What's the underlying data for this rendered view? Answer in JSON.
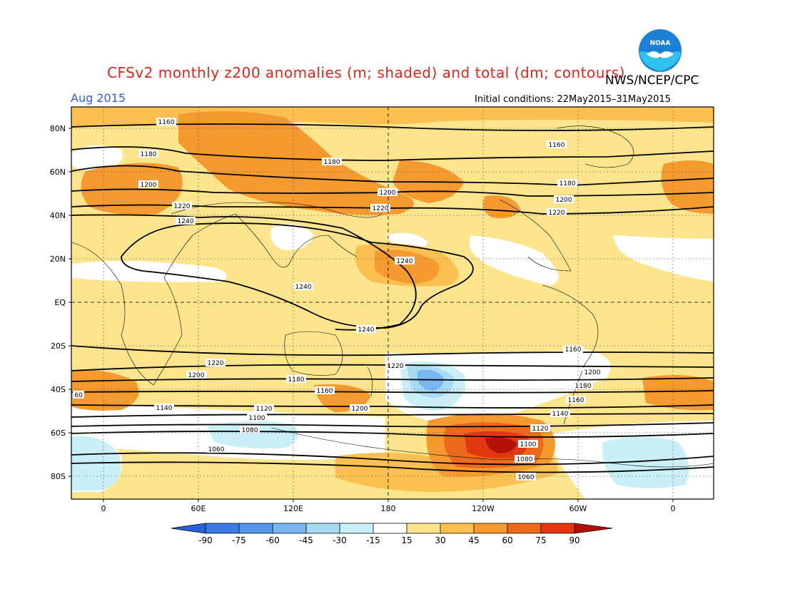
{
  "header": {
    "title": "CFSv2 monthly z200 anomalies (m; shaded) and total (dm; contours)",
    "agency": "NWS/NCEP/CPC",
    "month": "Aug 2015",
    "initial_conditions": "Initial conditions: 22May2015–31May2015",
    "logo_text": "NOAA"
  },
  "map": {
    "lat_labels": [
      "80N",
      "60N",
      "40N",
      "20N",
      "EQ",
      "20S",
      "40S",
      "60S",
      "80S"
    ],
    "lon_labels": [
      "0",
      "60E",
      "120E",
      "180",
      "120W",
      "60W",
      "0"
    ],
    "contour_labels": [
      "1160",
      "1180",
      "1200",
      "1220",
      "1240",
      "1240",
      "1240",
      "1240",
      "1220",
      "1200",
      "1180",
      "1160",
      "1140",
      "1120",
      "1100",
      "1080",
      "1060",
      "1180",
      "1200",
      "1220",
      "1160",
      "1180",
      "1200",
      "1220",
      "1200",
      "1180",
      "1160",
      "1140",
      "1120",
      "1100",
      "1080",
      "1060",
      "60",
      "1180",
      "1200",
      "1220",
      "1160",
      "1200",
      "1220"
    ]
  },
  "colorbar": {
    "ticks": [
      "-90",
      "-75",
      "-60",
      "-45",
      "-30",
      "-15",
      "15",
      "30",
      "45",
      "60",
      "75",
      "90"
    ],
    "colors": [
      "#2a62dd",
      "#3c78e6",
      "#5598ea",
      "#79b6f0",
      "#a6dbf4",
      "#c9f0f7",
      "#ffffff",
      "#fde58e",
      "#fbc04f",
      "#f49a2f",
      "#ee6a1b",
      "#e3370f",
      "#b51207"
    ]
  },
  "colors": {
    "title": "#e8231b",
    "month": "#2e5fe8"
  }
}
